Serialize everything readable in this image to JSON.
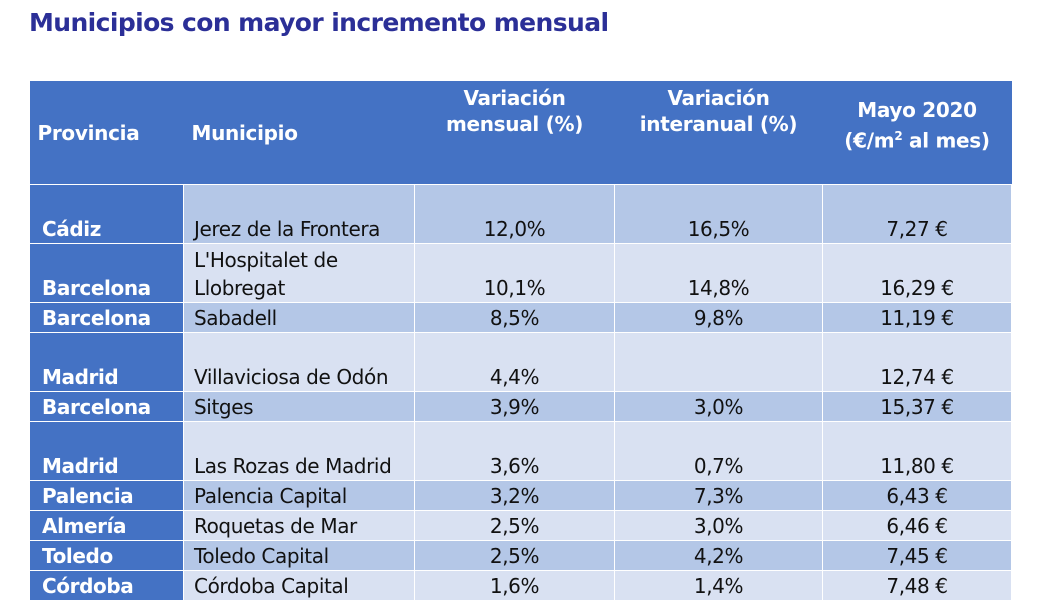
{
  "title": "Municipios con mayor incremento mensual",
  "table": {
    "headers": {
      "provincia": "Provincia",
      "municipio": "Municipio",
      "variacion_mensual": "Variación mensual (%)",
      "variacion_interanual": "Variación interanual (%)",
      "mayo_line1": "Mayo 2020",
      "mayo_line2_pre": "(€/m",
      "mayo_sup": "2",
      "mayo_line2_post": " al mes)"
    },
    "rows": [
      {
        "provincia": "Cádiz",
        "municipio": "Jerez de la Frontera",
        "mensual": "12,0%",
        "interanual": "16,5%",
        "precio": "7,27 €"
      },
      {
        "provincia": "Barcelona",
        "municipio": "L'Hospitalet de Llobregat",
        "mensual": "10,1%",
        "interanual": "14,8%",
        "precio": "16,29 €"
      },
      {
        "provincia": "Barcelona",
        "municipio": "Sabadell",
        "mensual": "8,5%",
        "interanual": "9,8%",
        "precio": "11,19 €"
      },
      {
        "provincia": "Madrid",
        "municipio": "Villaviciosa de Odón",
        "mensual": "4,4%",
        "interanual": "",
        "precio": "12,74 €"
      },
      {
        "provincia": "Barcelona",
        "municipio": "Sitges",
        "mensual": "3,9%",
        "interanual": "3,0%",
        "precio": "15,37 €"
      },
      {
        "provincia": "Madrid",
        "municipio": "Las Rozas de Madrid",
        "mensual": "3,6%",
        "interanual": "0,7%",
        "precio": "11,80 €"
      },
      {
        "provincia": "Palencia",
        "municipio": "Palencia Capital",
        "mensual": "3,2%",
        "interanual": "7,3%",
        "precio": "6,43 €"
      },
      {
        "provincia": "Almería",
        "municipio": "Roquetas de Mar",
        "mensual": "2,5%",
        "interanual": "3,0%",
        "precio": "6,46 €"
      },
      {
        "provincia": "Toledo",
        "municipio": "Toledo Capital",
        "mensual": "2,5%",
        "interanual": "4,2%",
        "precio": "7,45 €"
      },
      {
        "provincia": "Córdoba",
        "municipio": "Córdoba Capital",
        "mensual": "1,6%",
        "interanual": "1,4%",
        "precio": "7,48 €"
      }
    ]
  }
}
